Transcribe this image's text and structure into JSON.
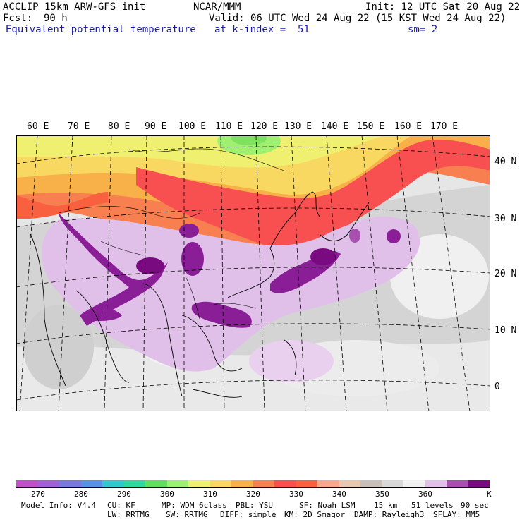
{
  "header": {
    "model": "ACCLIP 15km ARW-GFS init",
    "org": "NCAR/MMM",
    "init": "Init: 12 UTC Sat 20 Aug 22",
    "fcst_label": "Fcst:",
    "fcst_value": "90 h",
    "valid": "Valid: 06 UTC Wed 24 Aug 22 (15 KST Wed 24 Aug 22)",
    "field": "Equivalent potential temperature",
    "level": "at k-index =  51",
    "smooth": "sm= 2"
  },
  "map": {
    "lon_labels": [
      "60 E",
      "70 E",
      "80 E",
      "90 E",
      "100 E",
      "110 E",
      "120 E",
      "130 E",
      "140 E",
      "150 E",
      "160 E",
      "170 E"
    ],
    "lat_labels": [
      "40 N",
      "30 N",
      "20 N",
      "10 N",
      "0"
    ]
  },
  "colorbar": {
    "colors": [
      "#c050c8",
      "#a060d8",
      "#7878e0",
      "#5a90e8",
      "#30c8c8",
      "#30d8a0",
      "#60e060",
      "#a0f070",
      "#f0f070",
      "#f8d860",
      "#f8b048",
      "#f88050",
      "#f85050",
      "#f86040",
      "#f8a890",
      "#e8c8b0",
      "#c8c0b8",
      "#d8d8d8",
      "#f0f0f0",
      "#e0c0e8",
      "#a850b0",
      "#7a0a80"
    ],
    "labels": [
      "270",
      "280",
      "290",
      "300",
      "310",
      "320",
      "330",
      "340",
      "350",
      "360"
    ],
    "unit": "K"
  },
  "footer": {
    "line1": [
      "Model Info: V4.4",
      "CU: KF",
      "MP: WDM 6class",
      "PBL: YSU",
      "SF: Noah LSM",
      "15 km",
      "51 levels",
      "90 sec"
    ],
    "line2": [
      "LW: RRTMG",
      "SW: RRTMG",
      "DIFF: simple",
      "KM: 2D Smagor",
      "DAMP: Rayleigh3",
      "SFLAY: MM5"
    ]
  }
}
